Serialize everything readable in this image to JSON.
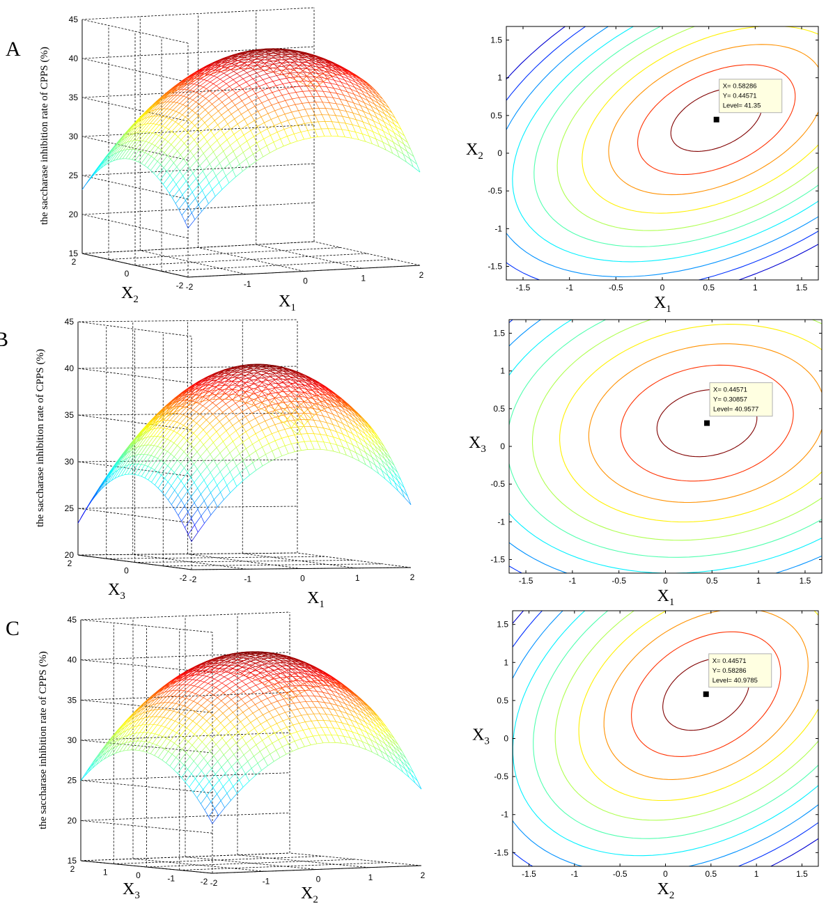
{
  "chart_data": [
    {
      "type": "surface",
      "panel": "A",
      "zlabel": "the saccharase inhibition rate of CPPS (%)",
      "xlabel": "X",
      "xlabel_sub": "1",
      "ylabel": "X",
      "ylabel_sub": "2",
      "zlim": [
        15,
        45
      ],
      "xlim": [
        -2,
        2
      ],
      "ylim": [
        -2,
        2
      ],
      "z_ticks": [
        "15",
        "20",
        "25",
        "30",
        "35",
        "40",
        "45"
      ],
      "x_ticks": [
        "-2",
        "-1",
        "0",
        "1",
        "2"
      ],
      "y_ticks": [
        "-2",
        "0",
        "2"
      ],
      "optimum": {
        "x": 0.58286,
        "y": 0.44571,
        "z": 41.35
      },
      "colormap": "jet",
      "grid": true
    },
    {
      "type": "contour",
      "panel": "A",
      "xlabel": "X",
      "xlabel_sub": "1",
      "ylabel": "X",
      "ylabel_sub": "2",
      "xlim": [
        -1.68,
        1.68
      ],
      "ylim": [
        -1.68,
        1.68
      ],
      "x_ticks": [
        "-1.5",
        "-1",
        "-0.5",
        "0",
        "0.5",
        "1",
        "1.5"
      ],
      "y_ticks": [
        "1.5",
        "1",
        "0.5",
        "0",
        "-0.5",
        "-1",
        "-1.5"
      ],
      "datatip": {
        "x": 0.58286,
        "y": 0.44571,
        "x_text": "X= 0.58286",
        "y_text": "Y= 0.44571",
        "level_text": "Level= 41.35"
      }
    },
    {
      "type": "surface",
      "panel": "B",
      "zlabel": "the saccharase inhibition rate of CPPS (%)",
      "xlabel": "X",
      "xlabel_sub": "1",
      "ylabel": "X",
      "ylabel_sub": "3",
      "zlim": [
        20,
        45
      ],
      "xlim": [
        -2,
        2
      ],
      "ylim": [
        -2,
        2
      ],
      "z_ticks": [
        "20",
        "25",
        "30",
        "35",
        "40",
        "45"
      ],
      "x_ticks": [
        "-2",
        "-1",
        "0",
        "1",
        "2"
      ],
      "y_ticks": [
        "-2",
        "0",
        "2"
      ],
      "optimum": {
        "x": 0.44571,
        "y": 0.30857,
        "z": 40.9577
      },
      "colormap": "jet",
      "grid": true
    },
    {
      "type": "contour",
      "panel": "B",
      "xlabel": "X",
      "xlabel_sub": "1",
      "ylabel": "X",
      "ylabel_sub": "3",
      "xlim": [
        -1.68,
        1.68
      ],
      "ylim": [
        -1.68,
        1.68
      ],
      "x_ticks": [
        "-1.5",
        "-1",
        "-0.5",
        "0",
        "0.5",
        "1",
        "1.5"
      ],
      "y_ticks": [
        "1.5",
        "1",
        "0.5",
        "0",
        "-0.5",
        "-1",
        "-1.5"
      ],
      "datatip": {
        "x": 0.44571,
        "y": 0.30857,
        "x_text": "X= 0.44571",
        "y_text": "Y= 0.30857",
        "level_text": "Level= 40.9577"
      }
    },
    {
      "type": "surface",
      "panel": "C",
      "zlabel": "the saccharase inhibition rate of CPPS (%)",
      "xlabel": "X",
      "xlabel_sub": "2",
      "ylabel": "X",
      "ylabel_sub": "3",
      "zlim": [
        15,
        45
      ],
      "xlim": [
        -2,
        2
      ],
      "ylim": [
        -2,
        2
      ],
      "z_ticks": [
        "15",
        "20",
        "25",
        "30",
        "35",
        "40",
        "45"
      ],
      "x_ticks": [
        "-2",
        "-1",
        "0",
        "1",
        "2"
      ],
      "y_ticks": [
        "-2",
        "-1",
        "0",
        "1",
        "2"
      ],
      "optimum": {
        "x": 0.44571,
        "y": 0.58286,
        "z": 40.9785
      },
      "colormap": "jet",
      "grid": true
    },
    {
      "type": "contour",
      "panel": "C",
      "xlabel": "X",
      "xlabel_sub": "2",
      "ylabel": "X",
      "ylabel_sub": "3",
      "xlim": [
        -1.68,
        1.68
      ],
      "ylim": [
        -1.68,
        1.68
      ],
      "x_ticks": [
        "-1.5",
        "-1",
        "-0.5",
        "0",
        "0.5",
        "1",
        "1.5"
      ],
      "y_ticks": [
        "1.5",
        "1",
        "0.5",
        "0",
        "-0.5",
        "-1",
        "-1.5"
      ],
      "datatip": {
        "x": 0.44571,
        "y": 0.58286,
        "x_text": "X= 0.44571",
        "y_text": "Y= 0.58286",
        "level_text": "Level= 40.9785"
      }
    }
  ],
  "panel_labels": [
    "A",
    "B",
    "C"
  ]
}
